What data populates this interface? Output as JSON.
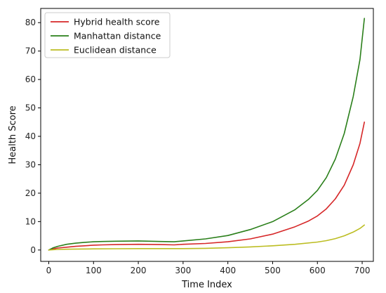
{
  "chart_data": {
    "type": "line",
    "title": "",
    "xlabel": "Time Index",
    "ylabel": "Health Score",
    "xlim": [
      -18,
      725
    ],
    "ylim": [
      -4,
      85
    ],
    "xticks": [
      0,
      100,
      200,
      300,
      400,
      500,
      600,
      700
    ],
    "yticks": [
      0,
      10,
      20,
      30,
      40,
      50,
      60,
      70,
      80
    ],
    "grid": false,
    "legend_position": "top-left",
    "series": [
      {
        "name": "Hybrid health score",
        "color": "#d62728",
        "x": [
          0,
          10,
          20,
          40,
          60,
          80,
          100,
          120,
          150,
          200,
          250,
          280,
          300,
          350,
          400,
          450,
          500,
          550,
          580,
          600,
          620,
          640,
          660,
          680,
          695,
          705
        ],
        "y": [
          0.0,
          0.4,
          0.7,
          1.0,
          1.3,
          1.5,
          1.7,
          1.8,
          1.9,
          2.0,
          1.9,
          1.8,
          2.0,
          2.3,
          2.9,
          3.9,
          5.6,
          8.2,
          10.2,
          12.0,
          14.5,
          18.0,
          22.8,
          30.0,
          37.5,
          45.0
        ]
      },
      {
        "name": "Manhattan distance",
        "color": "#2a7f1a",
        "x": [
          0,
          10,
          20,
          40,
          60,
          80,
          100,
          120,
          150,
          200,
          250,
          280,
          300,
          350,
          400,
          450,
          500,
          550,
          580,
          600,
          620,
          640,
          660,
          680,
          695,
          705
        ],
        "y": [
          0.0,
          0.8,
          1.3,
          2.0,
          2.4,
          2.7,
          2.9,
          3.0,
          3.1,
          3.2,
          3.0,
          2.9,
          3.2,
          3.9,
          5.1,
          7.2,
          10.0,
          14.2,
          17.8,
          21.0,
          25.5,
          32.0,
          41.0,
          54.0,
          67.0,
          81.5
        ]
      },
      {
        "name": "Euclidean distance",
        "color": "#bcbd22",
        "x": [
          0,
          20,
          50,
          100,
          150,
          200,
          250,
          300,
          350,
          400,
          450,
          500,
          550,
          600,
          620,
          640,
          660,
          680,
          695,
          705
        ],
        "y": [
          0.0,
          0.2,
          0.3,
          0.4,
          0.45,
          0.5,
          0.5,
          0.5,
          0.6,
          0.8,
          1.1,
          1.5,
          2.0,
          2.8,
          3.3,
          4.0,
          5.0,
          6.3,
          7.6,
          8.8
        ]
      }
    ]
  }
}
